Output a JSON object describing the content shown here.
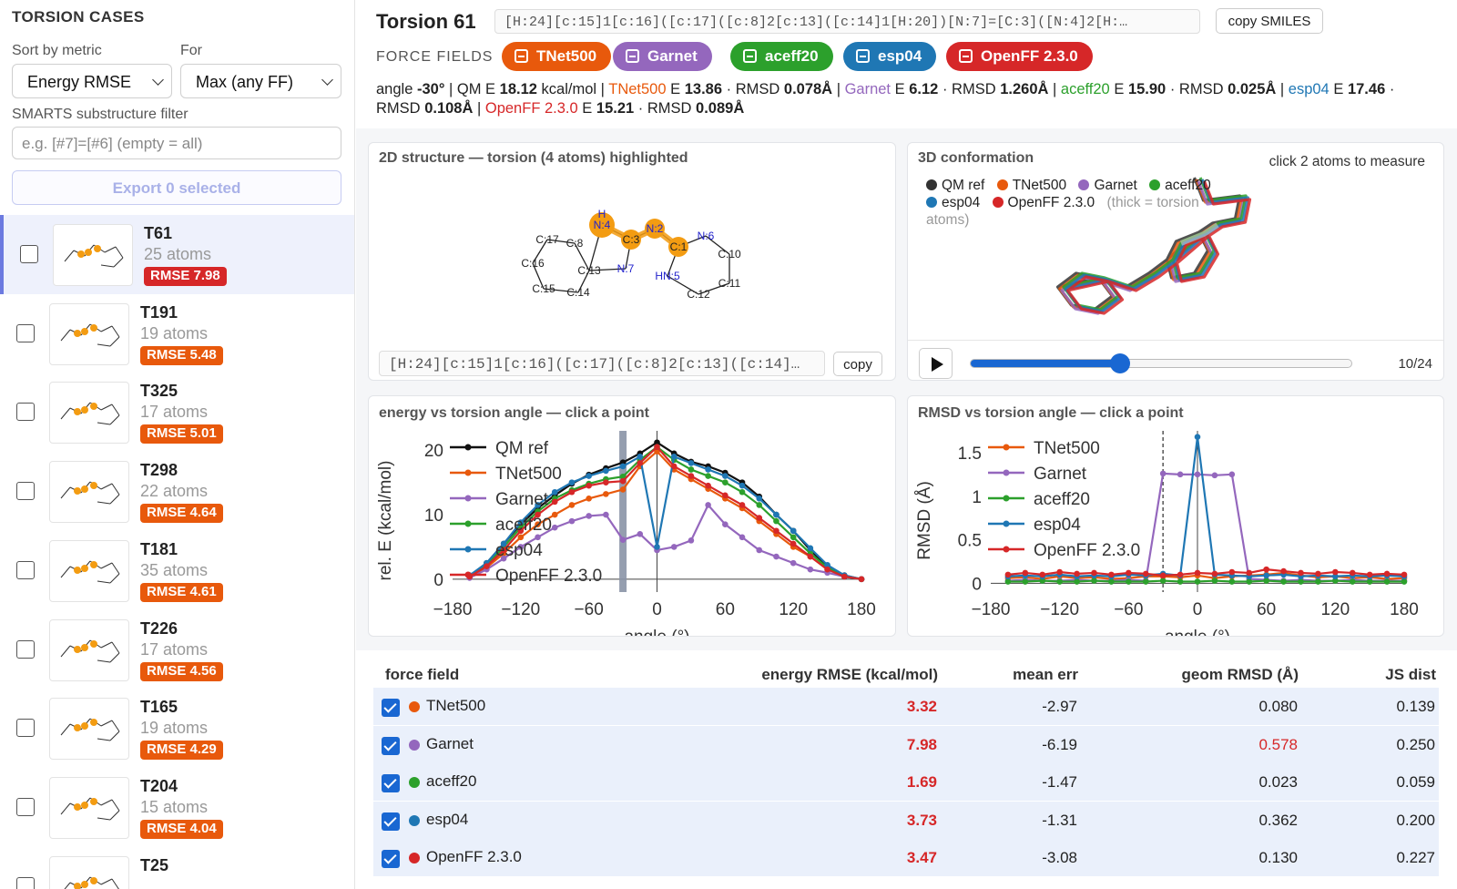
{
  "sidebar": {
    "title": "TORSION CASES",
    "sort_label": "Sort by metric",
    "for_label": "For",
    "sort_value": "Energy RMSE",
    "for_value": "Max (any FF)",
    "smarts_label": "SMARTS substructure filter",
    "smarts_placeholder": "e.g. [#7]=[#6] (empty = all)",
    "export_label": "Export 0 selected",
    "cases": [
      {
        "name": "T61",
        "atoms": "25 atoms",
        "rmse": "RMSE 7.98",
        "color": "#d62728",
        "selected": true
      },
      {
        "name": "T191",
        "atoms": "19 atoms",
        "rmse": "RMSE 5.48",
        "color": "#e8590c",
        "selected": false
      },
      {
        "name": "T325",
        "atoms": "17 atoms",
        "rmse": "RMSE 5.01",
        "color": "#e8590c",
        "selected": false
      },
      {
        "name": "T298",
        "atoms": "22 atoms",
        "rmse": "RMSE 4.64",
        "color": "#e8590c",
        "selected": false
      },
      {
        "name": "T181",
        "atoms": "35 atoms",
        "rmse": "RMSE 4.61",
        "color": "#e8590c",
        "selected": false
      },
      {
        "name": "T226",
        "atoms": "17 atoms",
        "rmse": "RMSE 4.56",
        "color": "#e8590c",
        "selected": false
      },
      {
        "name": "T165",
        "atoms": "19 atoms",
        "rmse": "RMSE 4.29",
        "color": "#e8590c",
        "selected": false
      },
      {
        "name": "T204",
        "atoms": "15 atoms",
        "rmse": "RMSE 4.04",
        "color": "#e8590c",
        "selected": false
      },
      {
        "name": "T25",
        "atoms": "",
        "rmse": "",
        "color": "#e8590c",
        "selected": false
      }
    ]
  },
  "header": {
    "title": "Torsion 61",
    "smiles": "[H:24][c:15]1[c:16]([c:17]([c:8]2[c:13]([c:14]1[H:20])[N:7]=[C:3]([N:4]2[H:…",
    "copy_smiles_label": "copy SMILES",
    "ff_label": "FORCE FIELDS"
  },
  "forcefields": [
    {
      "name": "TNet500",
      "color": "#e8590c"
    },
    {
      "name": "Garnet",
      "color": "#9467bd"
    },
    {
      "name": "aceff20",
      "color": "#2ca02c"
    },
    {
      "name": "esp04",
      "color": "#1f77b4"
    },
    {
      "name": "OpenFF 2.3.0",
      "color": "#d62728"
    }
  ],
  "metrics": {
    "angle_label": "angle",
    "angle_value": "-30°",
    "qm_label": "QM E",
    "qm_value": "18.12",
    "qm_unit": "kcal/mol",
    "entries": [
      {
        "name": "TNet500",
        "e": "13.86",
        "rmsd": "0.078Å"
      },
      {
        "name": "Garnet",
        "e": "6.12",
        "rmsd": "1.260Å"
      },
      {
        "name": "aceff20",
        "e": "15.90",
        "rmsd": "0.025Å"
      },
      {
        "name": "esp04",
        "e": "17.46",
        "rmsd": "0.108Å"
      },
      {
        "name": "OpenFF 2.3.0",
        "e": "15.21",
        "rmsd": "0.089Å"
      }
    ],
    "e_label": "E",
    "rmsd_label": "RMSD"
  },
  "panel2d": {
    "title": "2D structure — torsion (4 atoms) highlighted",
    "smiles": "[H:24][c:15]1[c:16]([c:17]([c:8]2[c:13]([c:14]…",
    "copy_label": "copy",
    "atoms": [
      "H",
      "N:4",
      "C:3",
      "N:2",
      "C:1",
      "N:6",
      "C:10",
      "C:11",
      "C:12",
      "HN:5",
      "N:7",
      "C:13",
      "C:8",
      "C:17",
      "C:16",
      "C:15",
      "C:14"
    ]
  },
  "panel3d": {
    "title": "3D conformation",
    "hint": "click 2 atoms to measure",
    "legend": [
      "QM ref",
      "TNet500",
      "Garnet",
      "aceff20",
      "esp04",
      "OpenFF 2.3.0"
    ],
    "note": "(thick = torsion atoms)",
    "frame": "10/24",
    "frame_progress": 0.39
  },
  "colors": {
    "qm": "#222222",
    "accent": "#1967d2",
    "red": "#d62728"
  },
  "chart_data": [
    {
      "type": "line",
      "title": "energy vs torsion angle — click a point",
      "xlabel": "angle (°)",
      "ylabel": "rel. E (kcal/mol)",
      "xlim": [
        -180,
        180
      ],
      "ylim": [
        -2,
        23
      ],
      "xticks": [
        -180,
        -120,
        -60,
        0,
        60,
        120,
        180
      ],
      "yticks": [
        0,
        10,
        20
      ],
      "selected_x": -30,
      "x": [
        -165,
        -150,
        -135,
        -120,
        -105,
        -90,
        -75,
        -60,
        -45,
        -30,
        -15,
        0,
        15,
        30,
        45,
        60,
        75,
        90,
        105,
        120,
        135,
        150,
        165,
        180
      ],
      "series": [
        {
          "name": "QM ref",
          "color": "#111111",
          "values": [
            0.5,
            2.5,
            5.5,
            8.5,
            11,
            13,
            14.8,
            16.2,
            17.2,
            18.1,
            19.5,
            21.2,
            19.5,
            18.2,
            17.5,
            16.5,
            15,
            12.8,
            10,
            7.5,
            4.5,
            2,
            0.4,
            0
          ]
        },
        {
          "name": "TNet500",
          "color": "#e8590c",
          "values": [
            0.3,
            1.8,
            4,
            6.5,
            8.5,
            10,
            11.5,
            12.5,
            13.2,
            13.9,
            17.5,
            19.8,
            17,
            15.5,
            14,
            12.5,
            11,
            9,
            7,
            5,
            3.5,
            1.5,
            0.6,
            0
          ]
        },
        {
          "name": "Garnet",
          "color": "#9467bd",
          "values": [
            0.2,
            1.5,
            3.2,
            5,
            6.5,
            8,
            9,
            9.8,
            10,
            6.1,
            7,
            4.5,
            5,
            6,
            11.5,
            8.5,
            6.5,
            4.5,
            3.5,
            2.5,
            1.5,
            1,
            0.4,
            0
          ]
        },
        {
          "name": "aceff20",
          "color": "#2ca02c",
          "values": [
            0.5,
            2.2,
            5,
            8,
            10.5,
            12.5,
            13.8,
            14.8,
            15.5,
            15.9,
            18.5,
            20.5,
            18.5,
            17,
            16,
            15,
            13.5,
            11.5,
            9,
            6.5,
            4,
            1.8,
            0.5,
            0
          ]
        },
        {
          "name": "esp04",
          "color": "#1f77b4",
          "values": [
            0.6,
            2.5,
            5.5,
            8.8,
            11.5,
            13.5,
            15,
            16,
            16.8,
            17.5,
            19,
            5,
            19,
            18,
            17,
            16,
            14.5,
            12.5,
            10,
            7.5,
            4.8,
            2.2,
            0.6,
            0
          ]
        },
        {
          "name": "OpenFF 2.3.0",
          "color": "#d62728",
          "values": [
            0.4,
            2,
            4.5,
            7.5,
            10,
            12,
            13.5,
            14.5,
            15,
            15.2,
            18,
            20.5,
            17.5,
            16,
            14.5,
            13,
            11.5,
            9.5,
            7.5,
            5.5,
            3.5,
            1.5,
            0.4,
            0
          ]
        }
      ]
    },
    {
      "type": "line",
      "title": "RMSD vs torsion angle — click a point",
      "xlabel": "angle (°)",
      "ylabel": "RMSD (Å)",
      "xlim": [
        -180,
        180
      ],
      "ylim": [
        -0.1,
        1.75
      ],
      "xticks": [
        -180,
        -120,
        -60,
        0,
        60,
        120,
        180
      ],
      "yticks": [
        0,
        0.5,
        1,
        1.5
      ],
      "selected_x": -30,
      "x": [
        -165,
        -150,
        -135,
        -120,
        -105,
        -90,
        -75,
        -60,
        -45,
        -30,
        -15,
        0,
        15,
        30,
        45,
        60,
        75,
        90,
        105,
        120,
        135,
        150,
        165,
        180
      ],
      "series": [
        {
          "name": "TNet500",
          "color": "#e8590c",
          "values": [
            0.06,
            0.07,
            0.05,
            0.08,
            0.06,
            0.07,
            0.05,
            0.06,
            0.08,
            0.08,
            0.07,
            0.09,
            0.06,
            0.08,
            0.09,
            0.1,
            0.12,
            0.09,
            0.07,
            0.08,
            0.06,
            0.07,
            0.05,
            0.06
          ]
        },
        {
          "name": "Garnet",
          "color": "#9467bd",
          "values": [
            0.03,
            0.04,
            0.03,
            0.03,
            0.04,
            0.03,
            0.03,
            0.04,
            0.03,
            1.26,
            1.25,
            1.25,
            1.24,
            1.25,
            0.05,
            0.04,
            0.03,
            0.04,
            0.03,
            0.03,
            0.04,
            0.03,
            0.03,
            0.03
          ]
        },
        {
          "name": "aceff20",
          "color": "#2ca02c",
          "values": [
            0.02,
            0.02,
            0.03,
            0.02,
            0.02,
            0.03,
            0.02,
            0.02,
            0.02,
            0.03,
            0.02,
            0.02,
            0.03,
            0.02,
            0.02,
            0.03,
            0.02,
            0.02,
            0.02,
            0.03,
            0.02,
            0.02,
            0.02,
            0.02
          ]
        },
        {
          "name": "esp04",
          "color": "#1f77b4",
          "values": [
            0.08,
            0.09,
            0.08,
            0.1,
            0.08,
            0.09,
            0.08,
            0.1,
            0.09,
            0.11,
            0.09,
            1.68,
            0.1,
            0.09,
            0.08,
            0.09,
            0.1,
            0.08,
            0.09,
            0.08,
            0.09,
            0.08,
            0.09,
            0.08
          ]
        },
        {
          "name": "OpenFF 2.3.0",
          "color": "#d62728",
          "values": [
            0.1,
            0.12,
            0.1,
            0.13,
            0.11,
            0.12,
            0.1,
            0.12,
            0.11,
            0.09,
            0.1,
            0.12,
            0.11,
            0.13,
            0.12,
            0.16,
            0.14,
            0.12,
            0.11,
            0.13,
            0.12,
            0.1,
            0.11,
            0.1
          ]
        }
      ]
    }
  ],
  "table": {
    "headers": [
      "force field",
      "energy RMSE (kcal/mol)",
      "mean err",
      "geom RMSD (Å)",
      "JS dist"
    ],
    "rows": [
      {
        "ff": "TNet500",
        "color": "#e8590c",
        "rmse": "3.32",
        "mean": "-2.97",
        "rmsd": "0.080",
        "rmsd_hi": false,
        "js": "0.139"
      },
      {
        "ff": "Garnet",
        "color": "#9467bd",
        "rmse": "7.98",
        "mean": "-6.19",
        "rmsd": "0.578",
        "rmsd_hi": true,
        "js": "0.250"
      },
      {
        "ff": "aceff20",
        "color": "#2ca02c",
        "rmse": "1.69",
        "mean": "-1.47",
        "rmsd": "0.023",
        "rmsd_hi": false,
        "js": "0.059"
      },
      {
        "ff": "esp04",
        "color": "#1f77b4",
        "rmse": "3.73",
        "mean": "-1.31",
        "rmsd": "0.362",
        "rmsd_hi": false,
        "js": "0.200"
      },
      {
        "ff": "OpenFF 2.3.0",
        "color": "#d62728",
        "rmse": "3.47",
        "mean": "-3.08",
        "rmsd": "0.130",
        "rmsd_hi": false,
        "js": "0.227"
      }
    ]
  }
}
